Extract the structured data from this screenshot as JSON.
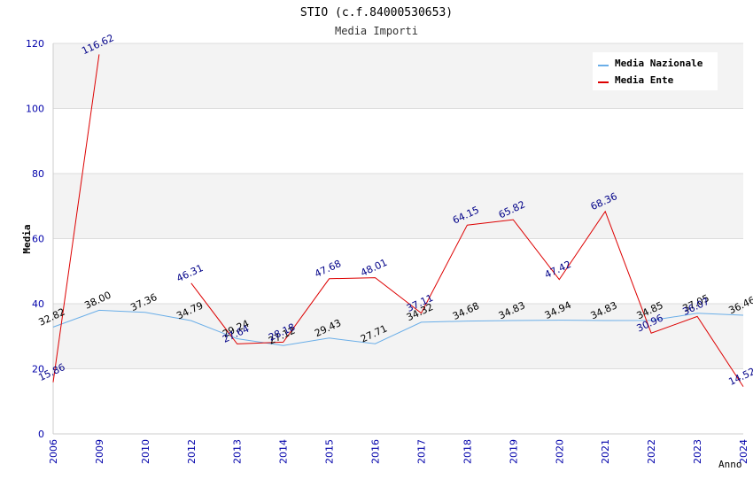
{
  "chart_data": {
    "type": "line",
    "title": "STIO (c.f.84000530653)",
    "subtitle": "Media Importi",
    "xlabel": "Anno",
    "ylabel": "Media",
    "ylim": [
      0,
      120
    ],
    "yticks": [
      "0",
      "20",
      "40",
      "60",
      "80",
      "100",
      "120"
    ],
    "categories": [
      "2006",
      "2009",
      "2010",
      "2012",
      "2013",
      "2014",
      "2015",
      "2016",
      "2017",
      "2018",
      "2019",
      "2020",
      "2021",
      "2022",
      "2023",
      "2024"
    ],
    "legend_position": "top-right",
    "series": [
      {
        "name": "Media Nazionale",
        "color": "#6aaee8",
        "label_color": "#000000",
        "values": [
          32.82,
          38.0,
          37.36,
          34.79,
          29.24,
          27.12,
          29.43,
          27.71,
          34.32,
          34.68,
          34.83,
          34.94,
          34.83,
          34.85,
          37.05,
          36.46
        ],
        "labels": [
          "32.82",
          "38.00",
          "37.36",
          "34.79",
          "29.24",
          "27.12",
          "29.43",
          "27.71",
          "34.32",
          "34.68",
          "34.83",
          "34.94",
          "34.83",
          "34.85",
          "37.05",
          "36.46"
        ]
      },
      {
        "name": "Media Ente",
        "color": "#dd0000",
        "label_color": "#000088",
        "values": [
          15.86,
          116.62,
          null,
          46.31,
          27.64,
          28.18,
          47.68,
          48.01,
          37.11,
          64.15,
          65.82,
          47.42,
          68.36,
          30.96,
          36.07,
          14.52
        ],
        "labels": [
          "15.86",
          "116.62",
          null,
          "46.31",
          "27.64",
          "28.18",
          "47.68",
          "48.01",
          "37.11",
          "64.15",
          "65.82",
          "47.42",
          "68.36",
          "30.96",
          "36.07",
          "14.52"
        ]
      }
    ]
  }
}
